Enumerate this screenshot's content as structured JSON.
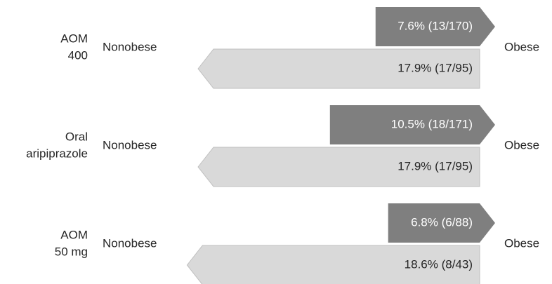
{
  "chart_data": {
    "type": "arrow",
    "categories": [
      [
        "AOM",
        "400"
      ],
      [
        "Oral",
        "aripiprazole"
      ],
      [
        "AOM",
        "50 mg"
      ]
    ],
    "left_label": "Nonobese",
    "right_label": "Obese",
    "series": [
      {
        "color": "#7f7f7f",
        "text_color": "#ffffff",
        "direction": "right",
        "values": [
          7.6,
          10.5,
          6.8
        ],
        "value_labels": [
          "7.6% (13/170)",
          "10.5% (18/171)",
          "6.8% (6/88)"
        ]
      },
      {
        "color": "#d9d9d9",
        "text_color": "#262626",
        "direction": "left",
        "values": [
          17.9,
          17.9,
          18.6
        ],
        "value_labels": [
          "17.9% (17/95)",
          "17.9% (17/95)",
          "18.6% (8/43)"
        ]
      }
    ]
  }
}
